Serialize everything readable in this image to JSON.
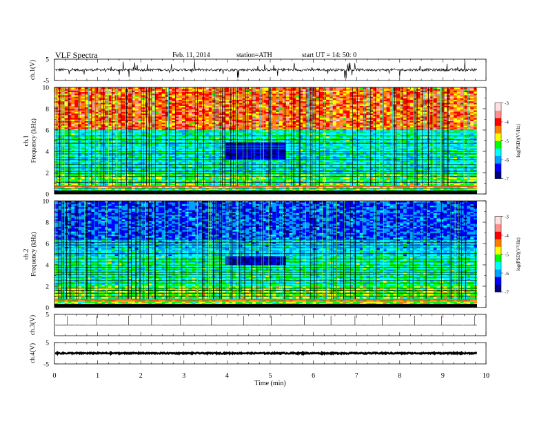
{
  "header": {
    "title": "VLF  Spectra",
    "date": "Feb. 11, 2014",
    "station": "station=ATH",
    "start": "start  UT  =    14: 50: 0"
  },
  "chart_data": [
    {
      "type": "line",
      "name": "ch1-waveform",
      "ylabel": "ch.1(V)",
      "ylim": [
        -5,
        5
      ],
      "yticks": [
        "5",
        "-5"
      ],
      "xlim": [
        0,
        10
      ],
      "baseline": 0,
      "spike_amplitude": 2.5
    },
    {
      "type": "heatmap",
      "name": "ch1-spectrogram",
      "ylabel_lines": [
        "ch.1",
        "Frequency  (kHz)"
      ],
      "ylim": [
        0,
        10
      ],
      "yticks": [
        "0",
        "2",
        "4",
        "6",
        "8",
        "10"
      ],
      "xlim": [
        0,
        10
      ],
      "colorbar": {
        "label": "log(PSD)(V²/Hz)",
        "range": [
          -7,
          -3
        ],
        "ticks": [
          "-3",
          "-4",
          "-5",
          "-6",
          "-7"
        ]
      },
      "quiet_interval_min": [
        3.95,
        5.3
      ],
      "quiet_band_khz": [
        3.3,
        4.8
      ]
    },
    {
      "type": "heatmap",
      "name": "ch2-spectrogram",
      "ylabel_lines": [
        "ch.2",
        "Frequency  (kHz)"
      ],
      "ylim": [
        0,
        10
      ],
      "yticks": [
        "0",
        "2",
        "4",
        "6",
        "8",
        "10"
      ],
      "xlim": [
        0,
        10
      ],
      "colorbar": {
        "label": "log(PSD)(V²/Hz)",
        "range": [
          -7,
          -3
        ],
        "ticks": [
          "-3",
          "-4",
          "-5",
          "-6",
          "-7"
        ]
      },
      "quiet_interval_min": [
        3.95,
        5.3
      ],
      "quiet_band_khz": [
        4.0,
        4.8
      ]
    },
    {
      "type": "line",
      "name": "ch3-waveform",
      "ylabel": "ch.3(V)",
      "ylim": [
        -5,
        5
      ],
      "yticks": [
        "5"
      ],
      "xlim": [
        0,
        10
      ],
      "baseline": 0
    },
    {
      "type": "line",
      "name": "ch4-waveform",
      "ylabel": "ch.4(V)",
      "ylim": [
        -5,
        5
      ],
      "yticks": [
        "5",
        "-5"
      ],
      "xlim": [
        0,
        10
      ],
      "baseline": 0
    }
  ],
  "x_axis": {
    "label": "Time  (min)",
    "ticks": [
      "0",
      "1",
      "2",
      "3",
      "4",
      "5",
      "6",
      "7",
      "8",
      "9",
      "10"
    ],
    "data_end_min": 9.8
  },
  "colors": {
    "cmap": [
      "#000080",
      "#0000ff",
      "#00a0ff",
      "#00ffff",
      "#00ff00",
      "#ffff00",
      "#ff8000",
      "#ff0000",
      "#ff9090",
      "#ffe0e0"
    ]
  }
}
